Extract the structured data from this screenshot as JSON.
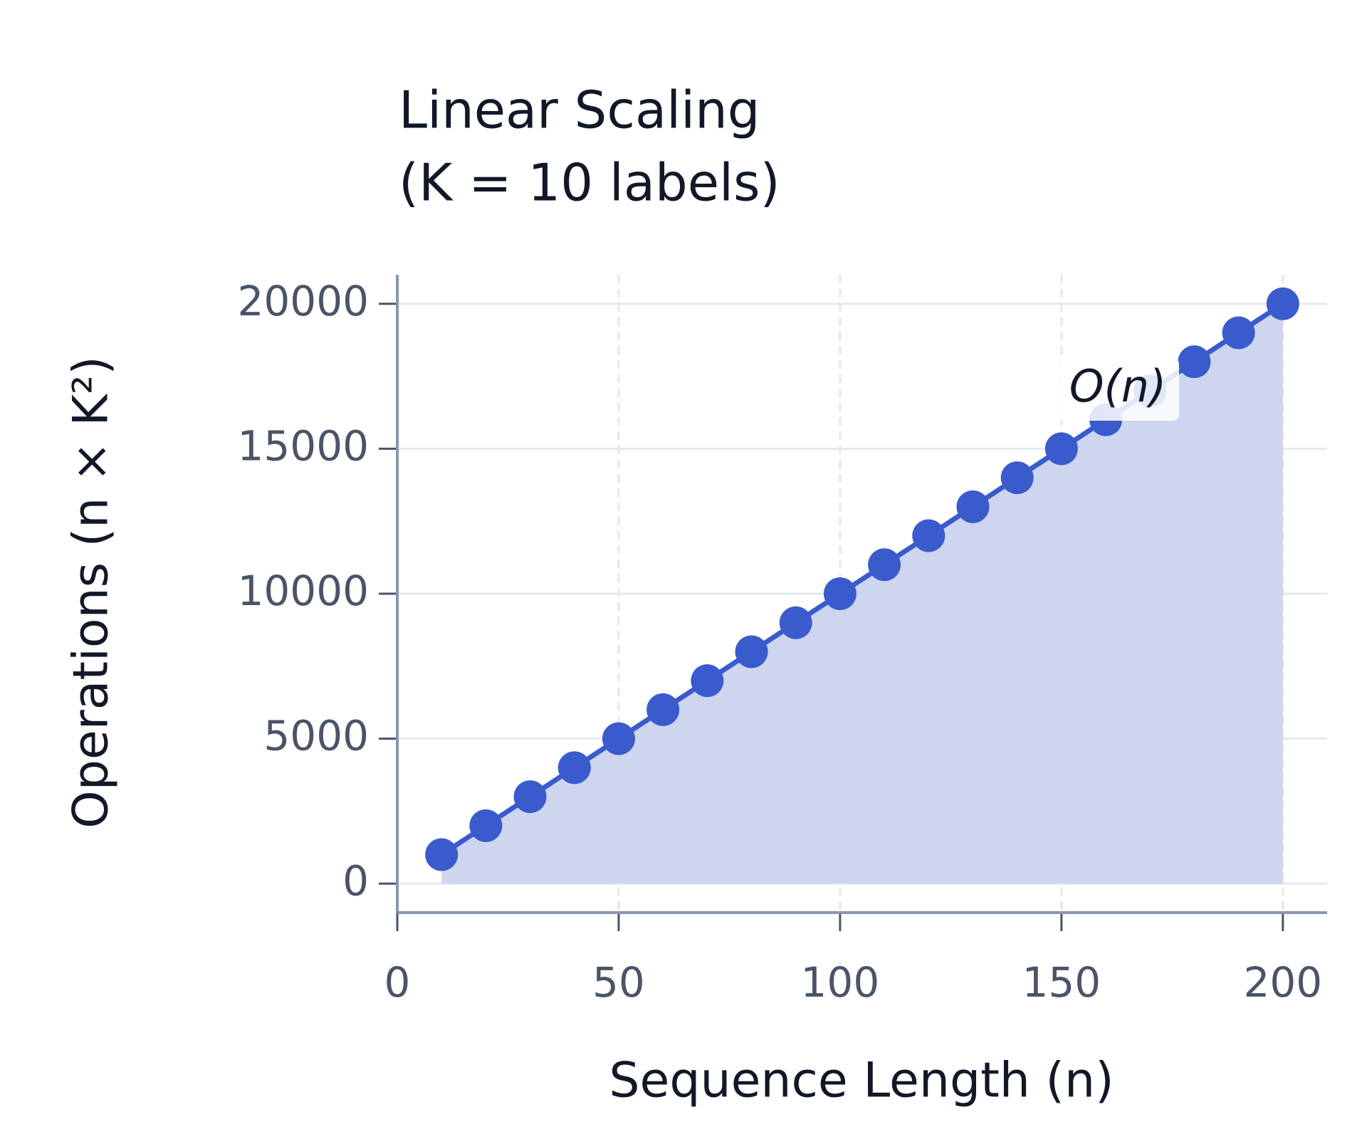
{
  "chart_data": {
    "type": "line",
    "title": [
      "Linear Scaling",
      "(K = 10 labels)"
    ],
    "xlabel": "Sequence Length (n)",
    "ylabel": "Operations (n × K²)",
    "annotation": "O(n)",
    "x": [
      10,
      20,
      30,
      40,
      50,
      60,
      70,
      80,
      90,
      100,
      110,
      120,
      130,
      140,
      150,
      160,
      170,
      180,
      190,
      200
    ],
    "series": [
      {
        "color": "#3a5bcc",
        "fill": "#cdd5ef",
        "values": [
          1000,
          2000,
          3000,
          4000,
          5000,
          6000,
          7000,
          8000,
          9000,
          10000,
          11000,
          12000,
          13000,
          14000,
          15000,
          16000,
          17000,
          18000,
          19000,
          20000
        ]
      }
    ],
    "xlim": [
      0,
      210
    ],
    "xticks": [
      0,
      50,
      100,
      150,
      200
    ],
    "ylim": [
      -1000,
      21000
    ],
    "yticks": [
      0,
      5000,
      10000,
      15000,
      20000
    ],
    "grid": true
  }
}
